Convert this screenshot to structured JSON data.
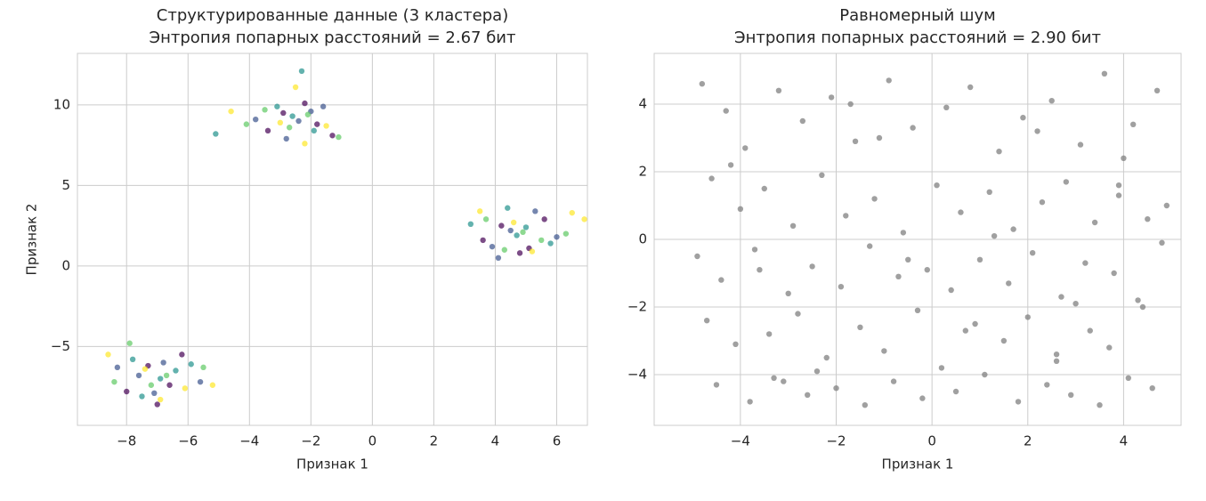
{
  "chart_data": [
    {
      "type": "scatter",
      "title": "Структурированные данные (3 кластера)",
      "subtitle": "Энтропия попарных расстояний = 2.67 бит",
      "x_label": "Признак 1",
      "y_label": "Признак 2",
      "grid": true,
      "opacity": 0.7,
      "xlim": [
        -9.6,
        7.0
      ],
      "ylim": [
        -9.9,
        13.2
      ],
      "xticks": [
        {
          "value": -8,
          "label": "−8"
        },
        {
          "value": -6,
          "label": "−6"
        },
        {
          "value": -4,
          "label": "−4"
        },
        {
          "value": -2,
          "label": "−2"
        },
        0,
        2,
        4,
        6
      ],
      "yticks": [
        {
          "value": -5,
          "label": "−5"
        },
        0,
        5,
        10
      ],
      "series": [
        {
          "color": "#440154",
          "x": [
            -2.9,
            -1.8,
            -3.4,
            -2.2,
            -1.3,
            4.2,
            5.1,
            3.6,
            5.6,
            4.8,
            -7.3,
            -6.6,
            -8.0,
            -6.2,
            -7.0
          ],
          "values": [
            9.5,
            8.8,
            8.4,
            10.1,
            8.1,
            2.5,
            1.1,
            1.6,
            2.9,
            0.8,
            -6.2,
            -7.4,
            -7.8,
            -5.5,
            -8.6
          ]
        },
        {
          "color": "#3b528b",
          "x": [
            -2.4,
            -3.8,
            -2.0,
            -2.8,
            -1.6,
            4.5,
            3.9,
            5.3,
            4.1,
            6.0,
            -7.6,
            -6.8,
            -5.6,
            -7.1,
            -8.3
          ],
          "values": [
            9.0,
            9.1,
            9.6,
            7.9,
            9.9,
            2.2,
            1.2,
            3.4,
            0.5,
            1.8,
            -6.8,
            -6.0,
            -7.2,
            -7.9,
            -6.3
          ]
        },
        {
          "color": "#21918c",
          "x": [
            -2.3,
            -5.1,
            -2.6,
            -3.1,
            -1.9,
            4.7,
            3.2,
            5.0,
            4.4,
            5.8,
            -6.9,
            -7.8,
            -6.4,
            -7.5,
            -5.9
          ],
          "values": [
            12.1,
            8.2,
            9.3,
            9.9,
            8.4,
            1.9,
            2.6,
            2.4,
            3.6,
            1.4,
            -7.0,
            -5.8,
            -6.5,
            -8.1,
            -6.1
          ]
        },
        {
          "color": "#5ec962",
          "x": [
            -2.1,
            -3.5,
            -1.1,
            -2.7,
            -4.1,
            4.9,
            3.7,
            5.5,
            4.3,
            6.3,
            -7.9,
            -6.7,
            -5.5,
            -7.2,
            -8.4
          ],
          "values": [
            9.4,
            9.7,
            8.0,
            8.6,
            8.8,
            2.1,
            2.9,
            1.6,
            1.0,
            2.0,
            -4.8,
            -6.8,
            -6.3,
            -7.4,
            -7.2
          ]
        },
        {
          "color": "#fde725",
          "x": [
            -2.5,
            -3.0,
            -1.5,
            -2.2,
            -4.6,
            6.9,
            4.6,
            3.5,
            5.2,
            6.5,
            -8.6,
            -6.9,
            -6.1,
            -7.4,
            -5.2
          ],
          "values": [
            11.1,
            8.9,
            8.7,
            7.6,
            9.6,
            2.9,
            2.7,
            3.4,
            0.9,
            3.3,
            -5.5,
            -8.3,
            -7.6,
            -6.4,
            -7.4
          ]
        }
      ]
    },
    {
      "type": "scatter",
      "title": "Равномерный шум",
      "subtitle": "Энтропия попарных расстояний = 2.90 бит",
      "x_label": "Признак 1",
      "grid": true,
      "opacity": 0.75,
      "xlim": [
        -5.8,
        5.2
      ],
      "ylim": [
        -5.5,
        5.5
      ],
      "xticks": [
        {
          "value": -4,
          "label": "−4"
        },
        {
          "value": -2,
          "label": "−2"
        },
        0,
        2,
        4
      ],
      "yticks": [
        {
          "value": -4,
          "label": "−4"
        },
        {
          "value": -2,
          "label": "−2"
        },
        0,
        2,
        4
      ],
      "series": [
        {
          "color": "#808080",
          "x": [
            -4.8,
            -4.3,
            -3.9,
            -3.2,
            -2.7,
            -2.1,
            -1.6,
            -0.9,
            -0.4,
            0.3,
            0.8,
            1.4,
            1.9,
            2.5,
            3.1,
            3.6,
            4.2,
            4.7,
            -4.6,
            -4.0,
            -3.5,
            -2.9,
            -2.3,
            -1.8,
            -1.2,
            -0.6,
            0.1,
            0.6,
            1.2,
            1.7,
            2.3,
            2.8,
            3.4,
            3.9,
            4.5,
            4.9,
            -4.9,
            -4.4,
            -3.7,
            -3.0,
            -2.5,
            -1.9,
            -1.3,
            -0.7,
            -0.1,
            0.4,
            1.0,
            1.6,
            2.1,
            2.7,
            3.2,
            3.8,
            4.3,
            4.8,
            -4.7,
            -4.1,
            -3.4,
            -2.8,
            -2.2,
            -1.5,
            -1.0,
            -0.3,
            0.2,
            0.9,
            1.5,
            2.0,
            2.6,
            3.3,
            3.7,
            4.4,
            -4.5,
            -3.8,
            -3.3,
            -2.6,
            -2.0,
            -1.4,
            -0.8,
            -0.2,
            0.5,
            1.1,
            1.8,
            2.4,
            2.9,
            3.5,
            4.1,
            4.6,
            -4.2,
            -3.6,
            -2.4,
            -1.1,
            0.7,
            1.3,
            2.2,
            3.0,
            4.0,
            -0.5,
            -1.7,
            2.6,
            3.9,
            -3.1
          ],
          "values": [
            4.6,
            3.8,
            2.7,
            4.4,
            3.5,
            4.2,
            2.9,
            4.7,
            3.3,
            3.9,
            4.5,
            2.6,
            3.6,
            4.1,
            2.8,
            4.9,
            3.4,
            4.4,
            1.8,
            0.9,
            1.5,
            0.4,
            1.9,
            0.7,
            1.2,
            0.2,
            1.6,
            0.8,
            1.4,
            0.3,
            1.1,
            1.7,
            0.5,
            1.3,
            0.6,
            1.0,
            -0.5,
            -1.2,
            -0.3,
            -1.6,
            -0.8,
            -1.4,
            -0.2,
            -1.1,
            -0.9,
            -1.5,
            -0.6,
            -1.3,
            -0.4,
            -1.7,
            -0.7,
            -1.0,
            -1.8,
            -0.1,
            -2.4,
            -3.1,
            -2.8,
            -2.2,
            -3.5,
            -2.6,
            -3.3,
            -2.1,
            -3.8,
            -2.5,
            -3.0,
            -2.3,
            -3.6,
            -2.7,
            -3.2,
            -2.0,
            -4.3,
            -4.8,
            -4.1,
            -4.6,
            -4.4,
            -4.9,
            -4.2,
            -4.7,
            -4.5,
            -4.0,
            -4.8,
            -4.3,
            -4.6,
            -4.9,
            -4.1,
            -4.4,
            2.2,
            -0.9,
            -3.9,
            3.0,
            -2.7,
            0.1,
            3.2,
            -1.9,
            2.4,
            -0.6,
            4.0,
            -3.4,
            1.6,
            -4.2
          ]
        }
      ]
    }
  ]
}
